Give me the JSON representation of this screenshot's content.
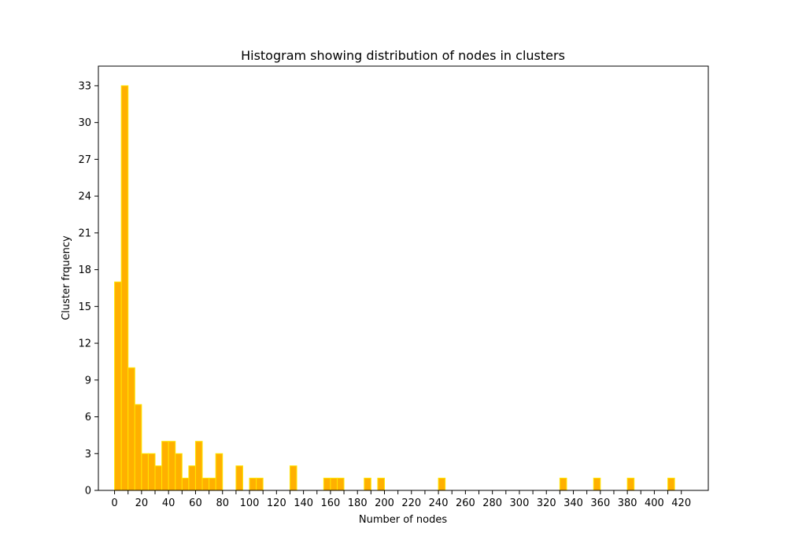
{
  "chart_data": {
    "type": "bar",
    "title": "Histogram showing distribution of nodes in clusters",
    "xlabel": "Number of nodes",
    "ylabel": "Cluster frquency",
    "xlim": [
      -12,
      440
    ],
    "ylim": [
      0,
      34.6
    ],
    "xticks": [
      0,
      10,
      20,
      30,
      40,
      50,
      60,
      70,
      80,
      90,
      100,
      110,
      120,
      130,
      140,
      150,
      160,
      170,
      180,
      190,
      200,
      210,
      220,
      230,
      240,
      250,
      260,
      270,
      280,
      290,
      300,
      310,
      320,
      330,
      340,
      350,
      360,
      370,
      380,
      390,
      400,
      410,
      420
    ],
    "xtick_labels": [
      "0",
      "",
      "20",
      "",
      "40",
      "",
      "60",
      "",
      "80",
      "",
      "100",
      "",
      "120",
      "",
      "140",
      "",
      "160",
      "",
      "180",
      "",
      "200",
      "",
      "220",
      "",
      "240",
      "",
      "260",
      "",
      "280",
      "",
      "300",
      "",
      "320",
      "",
      "340",
      "",
      "360",
      "",
      "380",
      "",
      "400",
      "",
      "420"
    ],
    "yticks": [
      0,
      3,
      6,
      9,
      12,
      15,
      18,
      21,
      24,
      27,
      30,
      33
    ],
    "bin_width": 5,
    "bins": [
      {
        "start": 0,
        "value": 17
      },
      {
        "start": 5,
        "value": 33
      },
      {
        "start": 10,
        "value": 10
      },
      {
        "start": 15,
        "value": 7
      },
      {
        "start": 20,
        "value": 3
      },
      {
        "start": 25,
        "value": 3
      },
      {
        "start": 30,
        "value": 2
      },
      {
        "start": 35,
        "value": 4
      },
      {
        "start": 40,
        "value": 4
      },
      {
        "start": 45,
        "value": 3
      },
      {
        "start": 50,
        "value": 1
      },
      {
        "start": 55,
        "value": 2
      },
      {
        "start": 60,
        "value": 4
      },
      {
        "start": 65,
        "value": 1
      },
      {
        "start": 70,
        "value": 1
      },
      {
        "start": 75,
        "value": 3
      },
      {
        "start": 90,
        "value": 2
      },
      {
        "start": 100,
        "value": 1
      },
      {
        "start": 105,
        "value": 1
      },
      {
        "start": 130,
        "value": 2
      },
      {
        "start": 155,
        "value": 1
      },
      {
        "start": 160,
        "value": 1
      },
      {
        "start": 165,
        "value": 1
      },
      {
        "start": 185,
        "value": 1
      },
      {
        "start": 195,
        "value": 1
      },
      {
        "start": 240,
        "value": 1
      },
      {
        "start": 330,
        "value": 1
      },
      {
        "start": 355,
        "value": 1
      },
      {
        "start": 380,
        "value": 1
      },
      {
        "start": 410,
        "value": 1
      }
    ],
    "grid": false,
    "legend": "none",
    "colors": {
      "bar_fill": "#ffb000",
      "bar_edge": "#ffe600",
      "axis": "#000000"
    }
  }
}
